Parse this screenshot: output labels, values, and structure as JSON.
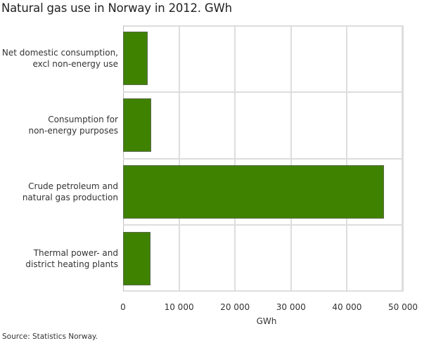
{
  "title": "Natural gas use in Norway in 2012. GWh",
  "source": "Source: Statistics Norway.",
  "colors": {
    "bar": "#3f8200",
    "grid": "#dddddd"
  },
  "chart_data": {
    "type": "bar",
    "orientation": "horizontal",
    "title": "Natural gas use in Norway in 2012. GWh",
    "categories": [
      "Net domestic consumption, excl non-energy use",
      "Consumption for non-energy purposes",
      "Crude petroleum and natural gas production",
      "Thermal power- and district heating plants"
    ],
    "category_lines": [
      [
        "Net domestic consumption,",
        "excl non-energy use"
      ],
      [
        "Consumption for",
        "non-energy purposes"
      ],
      [
        "Crude petroleum and",
        "natural gas production"
      ],
      [
        "Thermal power- and",
        "district heating plants"
      ]
    ],
    "values": [
      4400,
      5000,
      46600,
      4900
    ],
    "xlabel": "GWh",
    "ylabel": "",
    "xlim": [
      0,
      50000
    ],
    "xticks": [
      "0",
      "10 000",
      "20 000",
      "30 000",
      "40 000",
      "50 000"
    ],
    "grid": true,
    "legend": null
  }
}
